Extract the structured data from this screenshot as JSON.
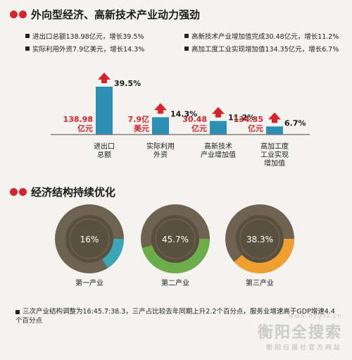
{
  "section1": {
    "title": "外向型经济、高新技术产业动力强劲"
  },
  "stats": [
    "进出口总额138.98亿元，增长39.5%",
    "高新技术产业增加值完成30.48亿元，增长11.2%",
    "实际利用外资7.9亿美元，增长14.3%",
    "高加工度工业实现增加值134.35亿元，增长6.7%"
  ],
  "section2": {
    "title": "经济结构持续优化"
  },
  "note": "三次产业结构调整为16:45.7:38.3，三产占比较去年同期上升2.2个百分点，服务业增速高于GDP增速4.4个百分点",
  "watermark": {
    "url": "www.hygss.cn",
    "name": "衡阳全搜索",
    "sub": "衡阳日报社官方网站"
  },
  "colors": {
    "accent": "#d8232a",
    "bar": "#2e8fb5",
    "ring_dark": "#6e6350",
    "ring_inner": "#5a5040",
    "teal": "#3aa6b6",
    "green": "#6cae4a",
    "orange": "#f0a030"
  },
  "chart_data": [
    {
      "type": "bar",
      "categories": [
        "进出口总额",
        "实际利用外资",
        "高新技术产业增加值",
        "高加工度工业实现增加值"
      ],
      "category_label_lines": [
        [
          "进出口",
          "总额"
        ],
        [
          "实际利用",
          "外资"
        ],
        [
          "高新技术",
          "产业增加值"
        ],
        [
          "高加工度",
          "工业实现",
          "增加值"
        ]
      ],
      "series": [
        {
          "values": [
            138.98,
            7.9,
            30.48,
            134.35
          ],
          "value_labels": [
            [
              "138.98",
              "亿元"
            ],
            [
              "7.9亿",
              "美元"
            ],
            [
              "30.48",
              "亿元"
            ],
            [
              "134.35",
              "亿元"
            ]
          ]
        },
        {
          "values": [
            39.5,
            14.3,
            11.2,
            6.7
          ],
          "value_labels": [
            "39.5%",
            "14.3%",
            "11.2%",
            "6.7%"
          ]
        }
      ]
    },
    {
      "type": "pie",
      "categories": [
        "第一产业",
        "第二产业",
        "第三产业"
      ],
      "values": [
        16,
        45.7,
        38.3
      ],
      "value_labels": [
        "16%",
        "45.7%",
        "38.3%"
      ]
    }
  ]
}
